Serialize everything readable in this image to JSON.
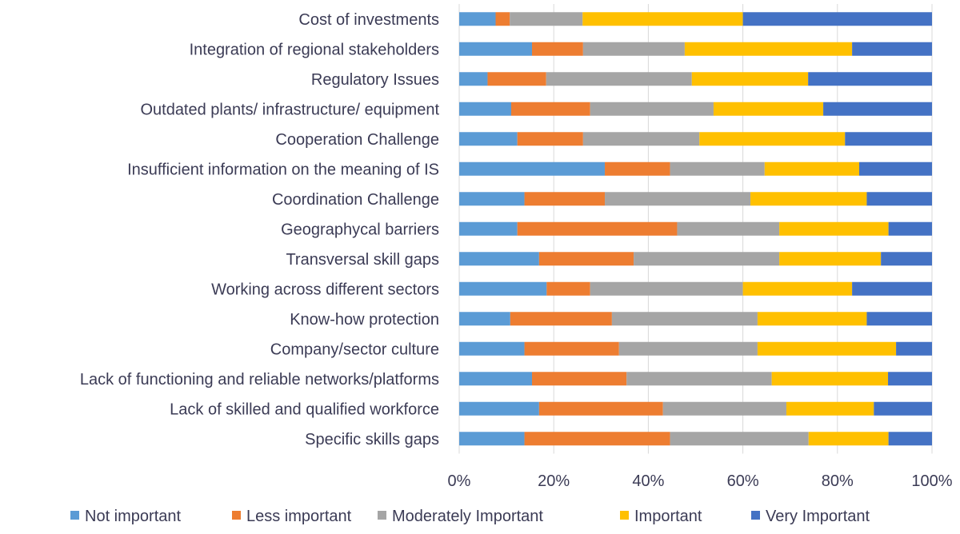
{
  "chart_data": {
    "type": "bar",
    "orientation": "horizontal",
    "stacked": "percent",
    "title": "",
    "xlabel": "",
    "ylabel": "",
    "xlim": [
      0,
      100
    ],
    "x_ticks": [
      "0%",
      "20%",
      "40%",
      "60%",
      "80%",
      "100%"
    ],
    "grid": true,
    "legend_position": "bottom",
    "categories": [
      "Cost of investments",
      "Integration of regional stakeholders",
      "Regulatory Issues",
      "Outdated plants/ infrastructure/ equipment",
      "Cooperation Challenge",
      "Insufficient information on the meaning of IS",
      "Coordination Challenge",
      "Geographycal barriers",
      "Transversal skill gaps",
      "Working across different sectors",
      "Know-how protection",
      "Company/sector culture",
      "Lack of functioning and reliable networks/platforms",
      "Lack of skilled and qualified workforce",
      "Specific skills gaps"
    ],
    "series": [
      {
        "name": "Not important",
        "color": "#5b9bd5",
        "values": [
          7.7,
          15.4,
          6.0,
          11.0,
          12.3,
          30.8,
          13.8,
          12.3,
          16.9,
          18.5,
          10.8,
          13.8,
          15.4,
          16.9,
          13.8
        ]
      },
      {
        "name": "Less important",
        "color": "#ed7d31",
        "values": [
          3.0,
          10.8,
          12.4,
          16.7,
          13.9,
          13.8,
          17.0,
          33.8,
          20.0,
          9.2,
          21.5,
          20.0,
          20.0,
          26.2,
          30.8
        ]
      },
      {
        "name": "Moderately Important",
        "color": "#a5a5a5",
        "values": [
          15.4,
          21.5,
          30.8,
          26.1,
          24.6,
          20.0,
          30.8,
          21.6,
          30.8,
          32.3,
          30.8,
          29.3,
          30.7,
          26.1,
          29.3
        ]
      },
      {
        "name": "Important",
        "color": "#ffc000",
        "values": [
          33.9,
          35.4,
          24.6,
          23.2,
          30.8,
          20.0,
          24.6,
          23.1,
          21.5,
          23.1,
          23.1,
          29.3,
          24.6,
          18.5,
          16.9
        ]
      },
      {
        "name": "Very Important",
        "color": "#4472c4",
        "values": [
          40.0,
          16.9,
          26.2,
          23.0,
          18.4,
          15.4,
          13.8,
          9.2,
          10.8,
          16.9,
          13.8,
          7.6,
          9.3,
          12.3,
          9.2
        ]
      }
    ]
  }
}
